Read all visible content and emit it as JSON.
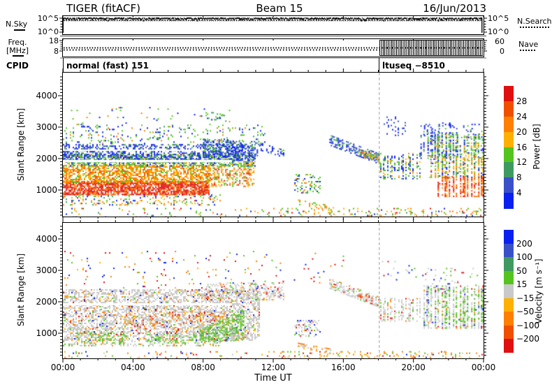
{
  "header": {
    "title": "TIGER (fitACF)",
    "beam": "Beam 15",
    "date": "16/Jun/2013"
  },
  "left_labels": {
    "nsky": "N.Sky",
    "freq1": "Freq.",
    "freq2": "[MHz]",
    "cpid": "CPID",
    "nsky_ticks": [
      "10^5",
      "10^0"
    ],
    "freq_ticks": [
      "18",
      "8"
    ]
  },
  "right_labels": {
    "nsky_ticks": [
      "10^5",
      "10^0"
    ],
    "nsearch": "N.Search",
    "nave_ticks": [
      "60",
      "0"
    ],
    "nave": "Nave"
  },
  "cpid_row": {
    "left": "normal (fast) 151",
    "right": "ltuseq −8510"
  },
  "x_axis": {
    "label": "Time UT",
    "tick_hours": [
      0,
      4,
      8,
      12,
      16,
      20,
      24
    ],
    "tick_labels": [
      "00:00",
      "04:00",
      "08:00",
      "12:00",
      "16:00",
      "20:00",
      "00:00"
    ]
  },
  "y_axis": {
    "label": "Slant Range [km]",
    "tick_km": [
      1000,
      2000,
      3000,
      4000
    ],
    "tick_labels": [
      "1000",
      "2000",
      "3000",
      "4000"
    ]
  },
  "palette": {
    "red": "#e01010",
    "orangered": "#f04f00",
    "orange": "#ff7f00",
    "amber": "#ffb000",
    "green": "#55c41e",
    "seagreen": "#3f9a60",
    "steelblue": "#3a50c8",
    "blue": "#0a20f0",
    "grey": "#c9c9c9",
    "dash_grey": "#b5b5b5"
  },
  "colorbars": {
    "power": {
      "title": "Power [dB]",
      "labels": [
        "28",
        "24",
        "20",
        "16",
        "12",
        "8",
        "4"
      ],
      "colors": [
        "#e01010",
        "#f04f00",
        "#ff7f00",
        "#ffb000",
        "#55c41e",
        "#3f9a60",
        "#3a50c8",
        "#0a20f0"
      ]
    },
    "velocity": {
      "title": "Velocity [m s⁻¹]",
      "labels": [
        "200",
        "100",
        "50",
        "15",
        "−15",
        "−50",
        "−100",
        "−200"
      ],
      "colors": [
        "#0a20f0",
        "#3a50c8",
        "#3f9a60",
        "#55c41e",
        "#c9c9c9",
        "#ffb000",
        "#ff7f00",
        "#f04f00",
        "#e01010"
      ]
    }
  },
  "chart_data": {
    "type": "heatmap",
    "title": "TIGER (fitACF), Beam 15, 16/Jun/2013 — range-time plots of Power [dB] and Velocity [m/s]",
    "x": {
      "label": "Time UT",
      "unit": "hours",
      "range": [
        0,
        24
      ]
    },
    "mode_change": {
      "ut_hours": 18.05,
      "style": "vertical grey dashed line; CPID changes from 'normal (fast) 151' to 'ltuseq −8510'"
    },
    "nsky_panel": {
      "ylabel": "N.Sky",
      "scale": "log",
      "yticks": [
        "10^0",
        "10^5"
      ],
      "summary": "solid noisy trace steady near 10^5 across 00:00–24:00 UT; dotted N.Search trace just beneath it"
    },
    "freq_panel": {
      "ylabel": "Freq. [MHz]",
      "yticks": [
        8,
        18
      ],
      "freq_mhz": 10.5,
      "nave_axis": {
        "ticks": [
          0,
          60
        ]
      },
      "summary": "dotted frequency line constant ~10.5 MHz all day; Nave low/steady until 18:05 UT, then dense 0–60 oscillation until 24:00"
    },
    "panels": [
      {
        "id": "power",
        "ylabel": "Slant Range [km]",
        "ylim_km": [
          150,
          4750
        ],
        "yticks_km": [
          1000,
          2000,
          3000,
          4000
        ],
        "colorbar": "power",
        "regions": [
          {
            "t": [
              0,
              12
            ],
            "rt": 430,
            "rb": 160,
            "d": 0.07,
            "c": {
              "green": 0.3,
              "orange": 0.22,
              "amber": 0.15,
              "blue": 0.15,
              "red": 0.08,
              "seagreen": 0.1
            }
          },
          {
            "t": [
              12,
              24
            ],
            "rt": 430,
            "rb": 160,
            "d": 0.13,
            "c": {
              "orange": 0.3,
              "amber": 0.2,
              "green": 0.25,
              "blue": 0.1,
              "red": 0.07,
              "seagreen": 0.08
            }
          },
          {
            "t": [
              0,
              9
            ],
            "rt": 860,
            "rb": 540,
            "d": 0.22,
            "c": {
              "green": 0.32,
              "orange": 0.22,
              "amber": 0.18,
              "blue": 0.12,
              "red": 0.08,
              "seagreen": 0.08
            }
          },
          {
            "t": [
              0,
              8.3
            ],
            "rt": 1280,
            "rb": 840,
            "d": 0.8,
            "c": {
              "red": 0.5,
              "orangered": 0.32,
              "orange": 0.18
            }
          },
          {
            "t": [
              0,
              8.3
            ],
            "rt": 1800,
            "rb": 1250,
            "d": 0.62,
            "c": {
              "orange": 0.42,
              "amber": 0.28,
              "green": 0.16,
              "orangered": 0.14
            }
          },
          {
            "t": [
              8.3,
              10.9
            ],
            "rt": 1850,
            "rb": 1130,
            "d": 0.42,
            "c": {
              "orange": 0.36,
              "amber": 0.22,
              "green": 0.2,
              "orangered": 0.12,
              "red": 0.1
            }
          },
          {
            "t": [
              0,
              11
            ],
            "rt": 2140,
            "rb": 1760,
            "d": 0.5,
            "c": {
              "green": 0.38,
              "seagreen": 0.28,
              "blue": 0.2,
              "amber": 0.14
            }
          },
          {
            "t": [
              0,
              11
            ],
            "rt": 2460,
            "rb": 1950,
            "d": 0.42,
            "c": {
              "blue": 0.48,
              "steelblue": 0.28,
              "seagreen": 0.14,
              "green": 0.1
            }
          },
          {
            "t": [
              0,
              11.5
            ],
            "rt": 3080,
            "rb": 2460,
            "d": 0.1,
            "c": {
              "green": 0.4,
              "blue": 0.3,
              "seagreen": 0.18,
              "orange": 0.12
            }
          },
          {
            "t": [
              0.3,
              9.5
            ],
            "rt": 3640,
            "rb": 3080,
            "d": 0.03,
            "c": {
              "green": 0.5,
              "blue": 0.3,
              "orange": 0.2
            }
          },
          {
            "t": [
              7.9,
              9.4
            ],
            "rt": 3480,
            "rb": 3140,
            "d": 0.22,
            "c": {
              "green": 0.6,
              "seagreen": 0.2,
              "blue": 0.2
            }
          },
          {
            "t": [
              0,
              9.6
            ],
            "rt": 1965,
            "rb": 1885,
            "clear": true
          },
          {
            "t": [
              0,
              8.0
            ],
            "rt": 2285,
            "rb": 2240,
            "clear": true
          },
          {
            "t": [
              8,
              9.7
            ],
            "rt": 2620,
            "rb": 2080,
            "d": 0.4,
            "c": {
              "blue": 0.42,
              "steelblue": 0.22,
              "green": 0.22,
              "seagreen": 0.14
            }
          },
          {
            "t": [
              9.7,
              11.2
            ],
            "rt": 2560,
            "rb": 2100,
            "d": 0.28,
            "c": {
              "blue": 0.5,
              "steelblue": 0.25,
              "green": 0.15,
              "seagreen": 0.1
            }
          },
          {
            "t": [
              11.2,
              12.6
            ],
            "rt": [
              2520,
              2280
            ],
            "rb": [
              2280,
              2060
            ],
            "d": 0.33,
            "c": {
              "blue": 0.55,
              "steelblue": 0.25,
              "green": 0.2
            }
          },
          {
            "t": [
              13.2,
              14.7
            ],
            "rt": 1510,
            "rb": 920,
            "d": 0.28,
            "c": {
              "green": 0.38,
              "blue": 0.24,
              "seagreen": 0.2,
              "orange": 0.18
            }
          },
          {
            "t": [
              13.4,
              15.4
            ],
            "rt": [
              700,
              500
            ],
            "rb": [
              530,
              320
            ],
            "d": 0.33,
            "c": {
              "orange": 0.38,
              "amber": 0.3,
              "green": 0.32
            }
          },
          {
            "t": [
              15.2,
              18.05
            ],
            "rt": [
              2760,
              2160
            ],
            "rb": [
              2440,
              1810
            ],
            "d": 0.5,
            "c": {
              "blue": 0.4,
              "steelblue": 0.3,
              "seagreen": 0.2,
              "green": 0.1
            }
          },
          {
            "t": [
              16.9,
              18.05
            ],
            "rt": [
              2300,
              2120
            ],
            "rb": [
              2090,
              1850
            ],
            "d": 0.45,
            "c": {
              "green": 0.34,
              "amber": 0.3,
              "orange": 0.2,
              "seagreen": 0.16
            }
          },
          {
            "t": [
              18.1,
              20.4
            ],
            "rt": 2180,
            "rb": 1360,
            "d": 0.26,
            "s": true,
            "c": {
              "blue": 0.34,
              "green": 0.3,
              "seagreen": 0.18,
              "amber": 0.12,
              "orange": 0.06
            }
          },
          {
            "t": [
              18.3,
              19.5
            ],
            "rt": 3340,
            "rb": 2700,
            "d": 0.1,
            "s": true,
            "c": {
              "blue": 0.6,
              "steelblue": 0.4
            }
          },
          {
            "t": [
              20.4,
              22.2
            ],
            "rt": 3100,
            "rb": 1950,
            "d": 0.15,
            "s": true,
            "c": {
              "blue": 0.5,
              "steelblue": 0.28,
              "green": 0.22
            }
          },
          {
            "t": [
              20.6,
              24
            ],
            "rt": 3150,
            "rb": 2700,
            "d": 0.14,
            "s": true,
            "c": {
              "blue": 0.6,
              "green": 0.24,
              "steelblue": 0.16
            }
          },
          {
            "t": [
              20.8,
              24
            ],
            "rt": 2780,
            "rb": 2040,
            "d": 0.33,
            "s": true,
            "c": {
              "blue": 0.3,
              "green": 0.32,
              "seagreen": 0.2,
              "amber": 0.18
            }
          },
          {
            "t": [
              20.9,
              24
            ],
            "rt": 2090,
            "rb": 1420,
            "d": 0.38,
            "s": true,
            "c": {
              "green": 0.32,
              "amber": 0.22,
              "orange": 0.22,
              "blue": 0.14,
              "seagreen": 0.1
            }
          },
          {
            "t": [
              21.3,
              24
            ],
            "rt": 1440,
            "rb": 800,
            "d": 0.42,
            "s": true,
            "c": {
              "red": 0.34,
              "orangered": 0.3,
              "orange": 0.26,
              "amber": 0.1
            }
          }
        ]
      },
      {
        "id": "velocity",
        "ylabel": "Slant Range [km]",
        "ylim_km": [
          200,
          4530
        ],
        "yticks_km": [
          1000,
          2000,
          3000,
          4000
        ],
        "colorbar": "velocity",
        "regions": [
          {
            "t": [
              0,
              12
            ],
            "rt": 430,
            "rb": 160,
            "d": 0.08,
            "c": {
              "orange": 0.3,
              "amber": 0.22,
              "green": 0.22,
              "red": 0.1,
              "blue": 0.08,
              "grey": 0.08
            }
          },
          {
            "t": [
              12,
              24
            ],
            "rt": 430,
            "rb": 160,
            "d": 0.15,
            "c": {
              "orange": 0.34,
              "amber": 0.26,
              "green": 0.2,
              "red": 0.08,
              "blue": 0.05,
              "grey": 0.07
            }
          },
          {
            "t": [
              0,
              11.2
            ],
            "rt": 2400,
            "rb": 760,
            "d": 0.5,
            "c": {
              "grey": 0.8,
              "orange": 0.07,
              "amber": 0.04,
              "red": 0.03,
              "blue": 0.03,
              "green": 0.03
            }
          },
          {
            "t": [
              0,
              9
            ],
            "rt": 760,
            "rb": 620,
            "d": 0.25,
            "c": {
              "grey": 0.7,
              "green": 0.2,
              "orange": 0.1
            }
          },
          {
            "t": [
              3.5,
              9.5
            ],
            "rt": 1700,
            "rb": 1150,
            "d": 0.12,
            "c": {
              "orange": 0.5,
              "amber": 0.3,
              "red": 0.2
            }
          },
          {
            "t": [
              0,
              9.6
            ],
            "rt": 1965,
            "rb": 1890,
            "clear": true
          },
          {
            "t": [
              0.8,
              3.6
            ],
            "rt": 1020,
            "rb": 700,
            "d": 0.3,
            "c": {
              "green": 0.7,
              "grey": 0.2,
              "orange": 0.1
            }
          },
          {
            "t": [
              4.8,
              7.6
            ],
            "rt": 980,
            "rb": 700,
            "d": 0.22,
            "c": {
              "green": 0.65,
              "grey": 0.25,
              "orange": 0.1
            }
          },
          {
            "t": [
              7.8,
              10.3
            ],
            "rt": [
              1120,
              1780
            ],
            "rb": [
              730,
              780
            ],
            "d": 0.5,
            "c": {
              "green": 0.74,
              "seagreen": 0.1,
              "grey": 0.1,
              "blue": 0.06
            }
          },
          {
            "t": [
              0,
              11.5
            ],
            "rt": 3620,
            "rb": 2420,
            "d": 0.028,
            "c": {
              "red": 0.3,
              "orange": 0.28,
              "blue": 0.18,
              "amber": 0.12,
              "green": 0.12
            }
          },
          {
            "t": [
              8,
              12.6
            ],
            "rt": 2620,
            "rb": 2080,
            "d": 0.3,
            "c": {
              "grey": 0.7,
              "orange": 0.1,
              "red": 0.07,
              "blue": 0.06,
              "green": 0.07
            }
          },
          {
            "t": [
              11.2,
              12.6
            ],
            "rt": [
              2520,
              2280
            ],
            "rb": [
              2280,
              2060
            ],
            "d": 0.3,
            "c": {
              "grey": 0.75,
              "red": 0.1,
              "orange": 0.08,
              "blue": 0.07
            }
          },
          {
            "t": [
              13.2,
              14.7
            ],
            "rt": 1420,
            "rb": 920,
            "d": 0.3,
            "c": {
              "grey": 0.55,
              "red": 0.12,
              "orange": 0.12,
              "blue": 0.1,
              "green": 0.11
            }
          },
          {
            "t": [
              13.4,
              15.4
            ],
            "rt": [
              700,
              500
            ],
            "rb": [
              530,
              320
            ],
            "d": 0.3,
            "c": {
              "grey": 0.45,
              "orange": 0.3,
              "amber": 0.25
            }
          },
          {
            "t": [
              15.2,
              18.05
            ],
            "rt": [
              2760,
              2160
            ],
            "rb": [
              2440,
              1810
            ],
            "d": 0.45,
            "c": {
              "grey": 0.76,
              "orange": 0.08,
              "red": 0.07,
              "green": 0.09
            }
          },
          {
            "t": [
              16.8,
              18.05
            ],
            "rt": [
              2300,
              2120
            ],
            "rb": [
              2100,
              1870
            ],
            "d": 0.3,
            "c": {
              "red": 0.4,
              "orangered": 0.25,
              "grey": 0.25,
              "orange": 0.1
            }
          },
          {
            "t": [
              18.1,
              20.4
            ],
            "rt": 2120,
            "rb": 1380,
            "d": 0.26,
            "s": true,
            "c": {
              "grey": 0.78,
              "green": 0.1,
              "orange": 0.06,
              "red": 0.06
            }
          },
          {
            "t": [
              18.2,
              20.2
            ],
            "rt": 3300,
            "rb": 2700,
            "d": 0.04,
            "c": {
              "blue": 0.3,
              "grey": 0.3,
              "green": 0.2,
              "red": 0.2
            }
          },
          {
            "t": [
              11.5,
              16
            ],
            "rt": 3560,
            "rb": 2620,
            "d": 0.012,
            "c": {
              "red": 0.3,
              "blue": 0.3,
              "green": 0.2,
              "orange": 0.2
            }
          },
          {
            "t": [
              20.5,
              24
            ],
            "rt": 2520,
            "rb": 1180,
            "d": 0.38,
            "s": true,
            "c": {
              "grey": 0.68,
              "green": 0.16,
              "red": 0.05,
              "blue": 0.05,
              "orange": 0.06
            }
          },
          {
            "t": [
              21.3,
              24
            ],
            "rt": 2420,
            "rb": 1320,
            "d": 0.12,
            "s": true,
            "c": {
              "green": 1
            }
          },
          {
            "t": [
              20.5,
              24
            ],
            "rt": 3080,
            "rb": 2520,
            "d": 0.06,
            "c": {
              "grey": 0.4,
              "green": 0.28,
              "blue": 0.18,
              "red": 0.14
            }
          }
        ]
      }
    ]
  }
}
